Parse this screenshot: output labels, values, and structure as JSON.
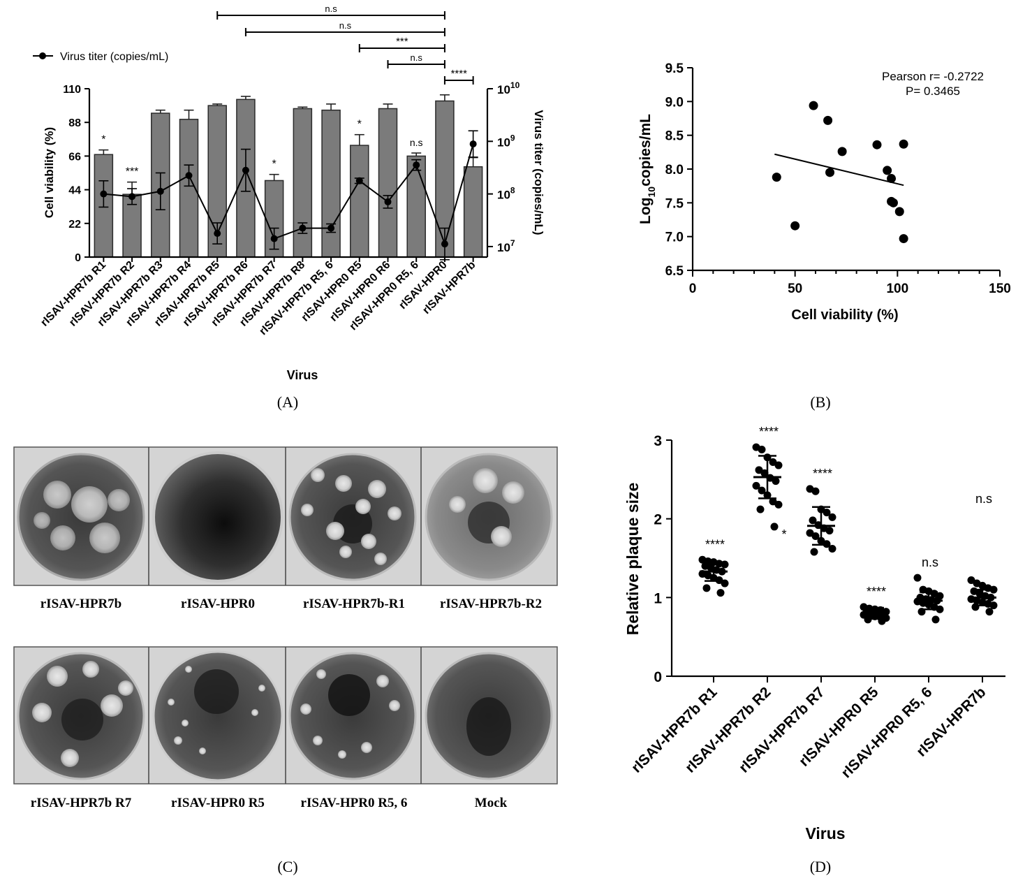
{
  "panels": {
    "A": {
      "caption": "(A)",
      "legend_label": "Virus titer (copies/mL)",
      "xlabel": "Virus",
      "ylabel_left": "Cell viability (%)",
      "ylabel_right": "Virus titer (copies/mL)",
      "left_ticks": [
        "0",
        "22",
        "44",
        "66",
        "88",
        "110"
      ],
      "right_ticks": [
        {
          "base": "10",
          "exp": "7"
        },
        {
          "base": "10",
          "exp": "8"
        },
        {
          "base": "10",
          "exp": "9"
        },
        {
          "base": "10",
          "exp": "10"
        }
      ]
    },
    "B": {
      "caption": "(B)",
      "xlabel": "Cell viability (%)",
      "ylabel_main": "Log",
      "ylabel_sub": "10",
      "ylabel_rest": "copies/mL",
      "annotation_r": "Pearson r= -0.2722",
      "annotation_p": "P= 0.3465",
      "x_ticks": [
        "0",
        "50",
        "100",
        "150"
      ],
      "y_ticks": [
        "6.5",
        "7.0",
        "7.5",
        "8.0",
        "8.5",
        "9.0",
        "9.5"
      ]
    },
    "C": {
      "caption": "(C)",
      "labels": [
        "rISAV-HPR7b",
        "rISAV-HPR0",
        "rISAV-HPR7b-R1",
        "rISAV-HPR7b-R2",
        "rISAV-HPR7b R7",
        "rISAV-HPR0 R5",
        "rISAV-HPR0 R5, 6",
        "Mock"
      ]
    },
    "D": {
      "caption": "(D)",
      "xlabel": "Virus",
      "ylabel": "Relative plaque size",
      "y_ticks": [
        "0",
        "1",
        "2",
        "3"
      ]
    }
  },
  "chart_data": [
    {
      "panel": "A",
      "type": "bar",
      "categories": [
        "rISAV-HPR7b R1",
        "rISAV-HPR7b R2",
        "rISAV-HPR7b R3",
        "rISAV-HPR7b R4",
        "rISAV-HPR7b R5",
        "rISAV-HPR7b R6",
        "rISAV-HPR7b R7",
        "rISAV-HPR7b R8",
        "rISAV-HPR7b R5, 6",
        "rISAV-HPR0 R5",
        "rISAV-HPR0 R6",
        "rISAV-HPR0 R5, 6",
        "rISAV-HPR0",
        "rISAV-HPR7b"
      ],
      "series": [
        {
          "name": "Cell viability (%)",
          "axis": "left",
          "values": [
            67,
            41,
            94,
            90,
            99,
            103,
            50,
            97,
            96,
            73,
            97,
            66,
            102,
            59
          ],
          "errors": [
            3,
            8,
            2,
            6,
            1,
            2,
            4,
            1,
            4,
            7,
            3,
            2,
            4,
            6
          ]
        },
        {
          "name": "Virus titer (copies/mL)",
          "axis": "right",
          "log10_values": [
            8.0,
            7.95,
            8.05,
            8.35,
            7.25,
            8.45,
            7.15,
            7.35,
            7.35,
            8.25,
            7.85,
            8.55,
            7.05,
            8.95
          ],
          "log10_errors": [
            0.25,
            0.15,
            0.35,
            0.2,
            0.2,
            0.4,
            0.2,
            0.1,
            0.08,
            0.05,
            0.12,
            0.1,
            0.3,
            0.25
          ]
        }
      ],
      "significance": [
        "*",
        "***",
        "",
        "",
        "",
        "",
        "*",
        "",
        "",
        "*",
        "",
        "n.s",
        "",
        ""
      ],
      "brackets": [
        {
          "from": "rISAV-HPR7b R5",
          "to": "rISAV-HPR0",
          "label": "n.s"
        },
        {
          "from": "rISAV-HPR7b R6",
          "to": "rISAV-HPR0",
          "label": "n.s"
        },
        {
          "from": "rISAV-HPR0 R5",
          "to": "rISAV-HPR0",
          "label": "***"
        },
        {
          "from": "rISAV-HPR0 R6",
          "to": "rISAV-HPR0",
          "label": "n.s"
        },
        {
          "from": "rISAV-HPR0",
          "to": "rISAV-HPR7b",
          "label": "****"
        }
      ],
      "ylim_left": [
        0,
        110
      ],
      "ylim_right_log10": [
        6.8,
        10
      ]
    },
    {
      "panel": "B",
      "type": "scatter",
      "x": [
        41,
        50,
        59,
        66,
        67,
        73,
        90,
        95,
        97,
        97,
        98,
        101,
        103,
        103
      ],
      "y": [
        7.88,
        7.16,
        8.94,
        8.72,
        7.95,
        8.26,
        8.36,
        7.98,
        7.86,
        7.52,
        7.5,
        7.37,
        8.37,
        6.97
      ],
      "fit_line": {
        "x": [
          40,
          103
        ],
        "y": [
          8.22,
          7.76
        ]
      },
      "xlim": [
        0,
        150
      ],
      "ylim": [
        6.5,
        9.5
      ]
    },
    {
      "panel": "D",
      "type": "scatter",
      "categories": [
        "rISAV-HPR7b R1",
        "rISAV-HPR7b R2",
        "rISAV-HPR7b R7",
        "rISAV-HPR0 R5",
        "rISAV-HPR0 R5, 6",
        "rISAV-HPR7b"
      ],
      "means": [
        1.33,
        2.53,
        1.91,
        0.8,
        0.96,
        1.0
      ],
      "sd": [
        0.12,
        0.27,
        0.24,
        0.07,
        0.11,
        0.1
      ],
      "points": [
        [
          1.48,
          1.46,
          1.45,
          1.43,
          1.42,
          1.4,
          1.38,
          1.35,
          1.33,
          1.3,
          1.28,
          1.25,
          1.22,
          1.18,
          1.12,
          1.06
        ],
        [
          2.91,
          2.88,
          2.78,
          2.72,
          2.68,
          2.62,
          2.58,
          2.52,
          2.48,
          2.42,
          2.36,
          2.3,
          2.22,
          2.18,
          2.12,
          1.9
        ],
        [
          2.38,
          2.35,
          2.12,
          2.08,
          2.02,
          1.98,
          1.92,
          1.88,
          1.85,
          1.82,
          1.78,
          1.72,
          1.68,
          1.62,
          1.58
        ],
        [
          0.88,
          0.86,
          0.85,
          0.84,
          0.82,
          0.81,
          0.8,
          0.8,
          0.79,
          0.78,
          0.77,
          0.76,
          0.75,
          0.74,
          0.72,
          0.7
        ],
        [
          1.25,
          1.1,
          1.08,
          1.05,
          1.02,
          1.0,
          0.98,
          0.97,
          0.96,
          0.95,
          0.93,
          0.91,
          0.88,
          0.85,
          0.82,
          0.72
        ],
        [
          1.22,
          1.18,
          1.15,
          1.12,
          1.1,
          1.08,
          1.05,
          1.02,
          1.0,
          0.98,
          0.96,
          0.94,
          0.92,
          0.9,
          0.88,
          0.82
        ]
      ],
      "significance": [
        "****",
        "****",
        "****",
        "****",
        "n.s",
        "n.s"
      ],
      "extra_marks": [
        {
          "category": "rISAV-HPR7b R2",
          "label": "*",
          "y": 1.75
        }
      ],
      "ylim": [
        0,
        3
      ]
    }
  ]
}
